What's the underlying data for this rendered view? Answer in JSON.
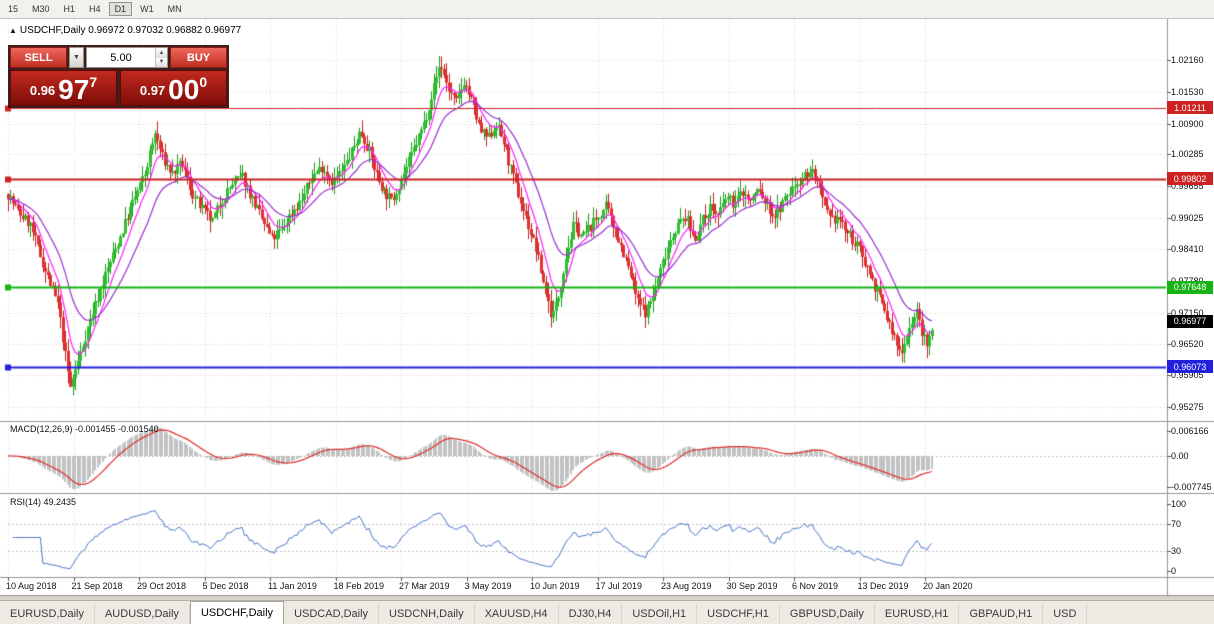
{
  "toolbar": {
    "timeframes": [
      "15",
      "M30",
      "H1",
      "H4",
      "D1",
      "W1",
      "MN"
    ],
    "active": "D1"
  },
  "chart": {
    "symbol": "USDCHF",
    "timeframe": "Daily",
    "header_display": "USDCHF,Daily 0.96972 0.97032 0.96882 0.96977",
    "ohlc": {
      "open": "0.96972",
      "high": "0.97032",
      "low": "0.96882",
      "close": "0.96977"
    }
  },
  "trade_panel": {
    "sell_label": "SELL",
    "buy_label": "BUY",
    "volume": "5.00",
    "sell_price": {
      "prefix": "0.96",
      "big": "97",
      "sup": "7"
    },
    "buy_price": {
      "prefix": "0.97",
      "big": "00",
      "sup": "0"
    }
  },
  "price_axis": {
    "ticks": [
      "1.02160",
      "1.01530",
      "1.00900",
      "1.00285",
      "0.99655",
      "0.99025",
      "0.98410",
      "0.97780",
      "0.97150",
      "0.96520",
      "0.95905",
      "0.95275"
    ]
  },
  "levels": [
    {
      "label": "1.01211",
      "value": 1.01211,
      "color": "#cc2222",
      "thickness": 1
    },
    {
      "label": "0.99802",
      "value": 0.99802,
      "color": "#cc2222",
      "thickness": 2
    },
    {
      "label": "0.97648",
      "value": 0.97648,
      "color": "#17b317",
      "thickness": 2
    },
    {
      "label": "0.96073",
      "value": 0.96073,
      "color": "#2121dd",
      "thickness": 2
    }
  ],
  "current_price": {
    "label": "0.96977",
    "value": 0.96977,
    "badge_color": "#000000"
  },
  "macd": {
    "label": "MACD(12,26,9) -0.001455 -0.001540",
    "value": "-0.001455",
    "signal_value": "-0.001540",
    "fast": 12,
    "slow": 26,
    "signal_period": 9,
    "axis": [
      "0.006166",
      "0.00",
      "-0.007745"
    ],
    "histogram_color": "#c2c2c2",
    "signal_color": "#e03030"
  },
  "rsi": {
    "label": "RSI(14) 49.2435",
    "value": "49.2435",
    "period": 14,
    "axis": [
      "100",
      "70",
      "30",
      "0"
    ],
    "line_color": "#4a78c8"
  },
  "time_axis": {
    "labels": [
      "10 Aug 2018",
      "21 Sep 2018",
      "29 Oct 2018",
      "5 Dec 2018",
      "11 Jan 2019",
      "18 Feb 2019",
      "27 Mar 2019",
      "3 May 2019",
      "10 Jun 2019",
      "17 Jul 2019",
      "23 Aug 2019",
      "30 Sep 2019",
      "6 Nov 2019",
      "13 Dec 2019",
      "20 Jan 2020"
    ]
  },
  "tabs": {
    "active_index": 2,
    "items": [
      "EURUSD,Daily",
      "AUDUSD,Daily",
      "USDCHF,Daily",
      "USDCAD,Daily",
      "USDCNH,Daily",
      "XAUUSD,H4",
      "DJ30,H4",
      "USDOil,H1",
      "USDCHF,H1",
      "GBPUSD,Daily",
      "EURUSD,H1",
      "GBPAUD,H1",
      "USD"
    ]
  },
  "chart_data": {
    "type": "candlestick",
    "symbol": "USDCHF",
    "timeframe": "Daily",
    "y_range": [
      0.95275,
      1.0216
    ],
    "x_range": [
      "10 Aug 2018",
      "20 Jan 2020"
    ],
    "up_color": "#2fbf2f",
    "down_color": "#e03030",
    "ma_fast": {
      "period": 8,
      "color": "#ff22ff"
    },
    "ma_slow": {
      "period": 21,
      "color": "#9b30d0"
    },
    "anchors": [
      [
        8,
        0.995
      ],
      [
        18,
        0.9915
      ],
      [
        30,
        0.989
      ],
      [
        45,
        0.98
      ],
      [
        58,
        0.973
      ],
      [
        70,
        0.9565
      ],
      [
        78,
        0.962
      ],
      [
        90,
        0.97
      ],
      [
        105,
        0.979
      ],
      [
        118,
        0.9855
      ],
      [
        132,
        0.993
      ],
      [
        145,
        0.999
      ],
      [
        155,
        1.007
      ],
      [
        163,
        1.002
      ],
      [
        172,
        0.999
      ],
      [
        182,
        1.001
      ],
      [
        192,
        0.995
      ],
      [
        202,
        0.992
      ],
      [
        212,
        0.9895
      ],
      [
        222,
        0.994
      ],
      [
        232,
        0.997
      ],
      [
        242,
        0.9985
      ],
      [
        252,
        0.994
      ],
      [
        262,
        0.99
      ],
      [
        272,
        0.986
      ],
      [
        282,
        0.988
      ],
      [
        292,
        0.9915
      ],
      [
        302,
        0.994
      ],
      [
        312,
        0.9985
      ],
      [
        322,
        1.0005
      ],
      [
        332,
        0.9975
      ],
      [
        342,
        0.9995
      ],
      [
        352,
        1.0035
      ],
      [
        360,
        1.0075
      ],
      [
        368,
        1.004
      ],
      [
        376,
        0.999
      ],
      [
        384,
        0.9955
      ],
      [
        392,
        0.9935
      ],
      [
        400,
        0.9975
      ],
      [
        408,
        1.001
      ],
      [
        416,
        1.005
      ],
      [
        424,
        1.009
      ],
      [
        432,
        1.015
      ],
      [
        440,
        1.021
      ],
      [
        448,
        1.016
      ],
      [
        456,
        1.013
      ],
      [
        464,
        1.0175
      ],
      [
        472,
        1.013
      ],
      [
        480,
        1.0075
      ],
      [
        488,
        1.006
      ],
      [
        496,
        1.009
      ],
      [
        504,
        1.005
      ],
      [
        512,
        0.999
      ],
      [
        520,
        0.994
      ],
      [
        528,
        0.989
      ],
      [
        536,
        0.984
      ],
      [
        544,
        0.977
      ],
      [
        552,
        0.9705
      ],
      [
        558,
        0.9745
      ],
      [
        566,
        0.983
      ],
      [
        574,
        0.989
      ],
      [
        582,
        0.9865
      ],
      [
        590,
        0.9885
      ],
      [
        598,
        0.9905
      ],
      [
        606,
        0.9925
      ],
      [
        614,
        0.988
      ],
      [
        622,
        0.984
      ],
      [
        630,
        0.979
      ],
      [
        638,
        0.9735
      ],
      [
        646,
        0.9715
      ],
      [
        654,
        0.9755
      ],
      [
        662,
        0.981
      ],
      [
        670,
        0.986
      ],
      [
        678,
        0.989
      ],
      [
        686,
        0.9905
      ],
      [
        694,
        0.986
      ],
      [
        702,
        0.9895
      ],
      [
        710,
        0.9925
      ],
      [
        718,
        0.9905
      ],
      [
        726,
        0.9945
      ],
      [
        734,
        0.993
      ],
      [
        742,
        0.9955
      ],
      [
        750,
        0.9935
      ],
      [
        758,
        0.996
      ],
      [
        766,
        0.993
      ],
      [
        774,
        0.9905
      ],
      [
        782,
        0.993
      ],
      [
        790,
        0.9955
      ],
      [
        798,
        0.9975
      ],
      [
        806,
        0.999
      ],
      [
        814,
        0.9995
      ],
      [
        822,
        0.9935
      ],
      [
        830,
        0.9895
      ],
      [
        838,
        0.9905
      ],
      [
        846,
        0.9875
      ],
      [
        854,
        0.9855
      ],
      [
        862,
        0.983
      ],
      [
        870,
        0.979
      ],
      [
        878,
        0.975
      ],
      [
        886,
        0.971
      ],
      [
        894,
        0.9665
      ],
      [
        900,
        0.9635
      ],
      [
        906,
        0.9665
      ],
      [
        912,
        0.97
      ],
      [
        917,
        0.9715
      ],
      [
        922,
        0.9675
      ],
      [
        927,
        0.9645
      ],
      [
        933,
        0.9698
      ]
    ]
  }
}
